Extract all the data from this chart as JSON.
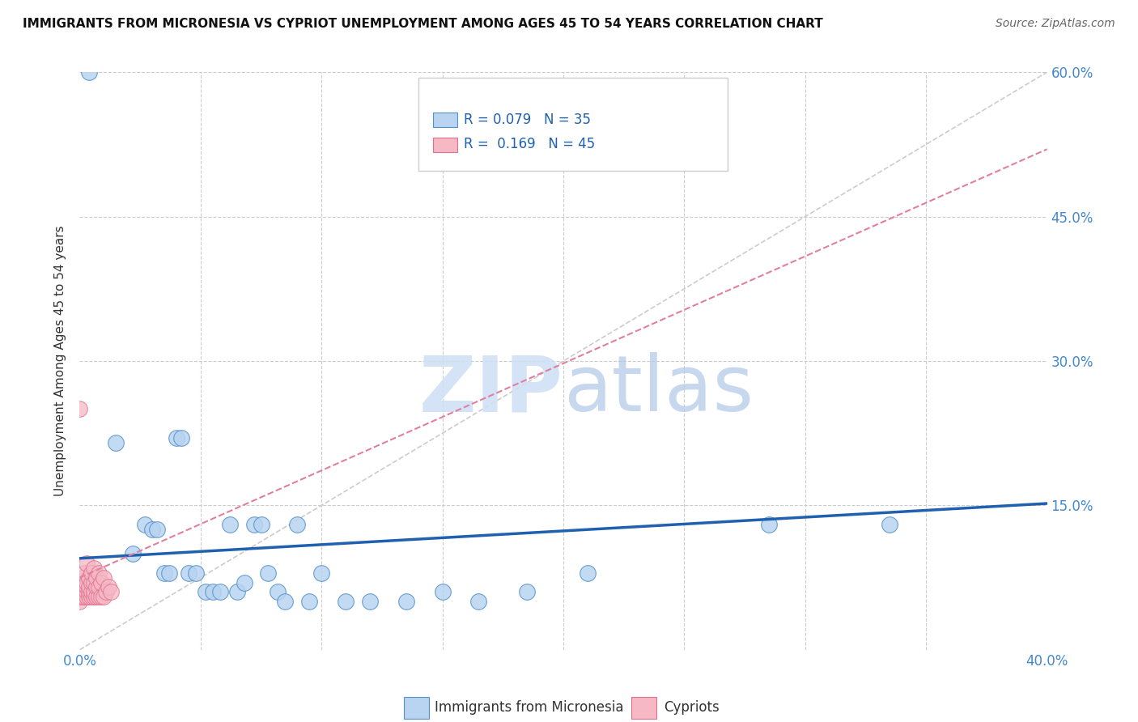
{
  "title": "IMMIGRANTS FROM MICRONESIA VS CYPRIOT UNEMPLOYMENT AMONG AGES 45 TO 54 YEARS CORRELATION CHART",
  "source": "Source: ZipAtlas.com",
  "ylabel": "Unemployment Among Ages 45 to 54 years",
  "xlim": [
    0.0,
    0.4
  ],
  "ylim": [
    0.0,
    0.6
  ],
  "legend_blue_label": "Immigrants from Micronesia",
  "legend_pink_label": "Cypriots",
  "R_blue": 0.079,
  "N_blue": 35,
  "R_pink": 0.169,
  "N_pink": 45,
  "blue_color": "#b8d4f0",
  "pink_color": "#f5b8c4",
  "blue_edge_color": "#5590cc",
  "pink_edge_color": "#e07090",
  "blue_line_color": "#2060b0",
  "pink_line_color": "#e080a0",
  "grid_color": "#cccccc",
  "tick_color": "#4488cc",
  "blue_scatter_x": [
    0.004,
    0.015,
    0.022,
    0.027,
    0.03,
    0.032,
    0.035,
    0.037,
    0.04,
    0.042,
    0.045,
    0.048,
    0.052,
    0.055,
    0.058,
    0.062,
    0.065,
    0.068,
    0.072,
    0.075,
    0.078,
    0.082,
    0.085,
    0.09,
    0.095,
    0.1,
    0.11,
    0.12,
    0.135,
    0.15,
    0.165,
    0.185,
    0.21,
    0.285,
    0.335
  ],
  "blue_scatter_y": [
    0.6,
    0.215,
    0.1,
    0.13,
    0.125,
    0.125,
    0.08,
    0.08,
    0.22,
    0.22,
    0.08,
    0.08,
    0.06,
    0.06,
    0.06,
    0.13,
    0.06,
    0.07,
    0.13,
    0.13,
    0.08,
    0.06,
    0.05,
    0.13,
    0.05,
    0.08,
    0.05,
    0.05,
    0.05,
    0.06,
    0.05,
    0.06,
    0.08,
    0.13,
    0.13
  ],
  "pink_scatter_x": [
    0.0,
    0.0,
    0.0,
    0.0,
    0.001,
    0.001,
    0.001,
    0.001,
    0.001,
    0.002,
    0.002,
    0.002,
    0.002,
    0.002,
    0.003,
    0.003,
    0.003,
    0.003,
    0.003,
    0.004,
    0.004,
    0.004,
    0.004,
    0.005,
    0.005,
    0.005,
    0.005,
    0.006,
    0.006,
    0.006,
    0.006,
    0.007,
    0.007,
    0.007,
    0.008,
    0.008,
    0.008,
    0.009,
    0.009,
    0.01,
    0.01,
    0.011,
    0.012,
    0.013,
    0.0
  ],
  "pink_scatter_y": [
    0.05,
    0.055,
    0.06,
    0.065,
    0.055,
    0.06,
    0.065,
    0.07,
    0.075,
    0.055,
    0.06,
    0.065,
    0.07,
    0.08,
    0.055,
    0.06,
    0.065,
    0.07,
    0.09,
    0.055,
    0.06,
    0.065,
    0.075,
    0.055,
    0.06,
    0.07,
    0.08,
    0.055,
    0.06,
    0.07,
    0.085,
    0.055,
    0.065,
    0.075,
    0.055,
    0.065,
    0.08,
    0.055,
    0.07,
    0.055,
    0.075,
    0.06,
    0.065,
    0.06,
    0.25
  ],
  "blue_line_y0": 0.095,
  "blue_line_y1": 0.152,
  "pink_line_y0": 0.075,
  "pink_line_y1": 0.52
}
